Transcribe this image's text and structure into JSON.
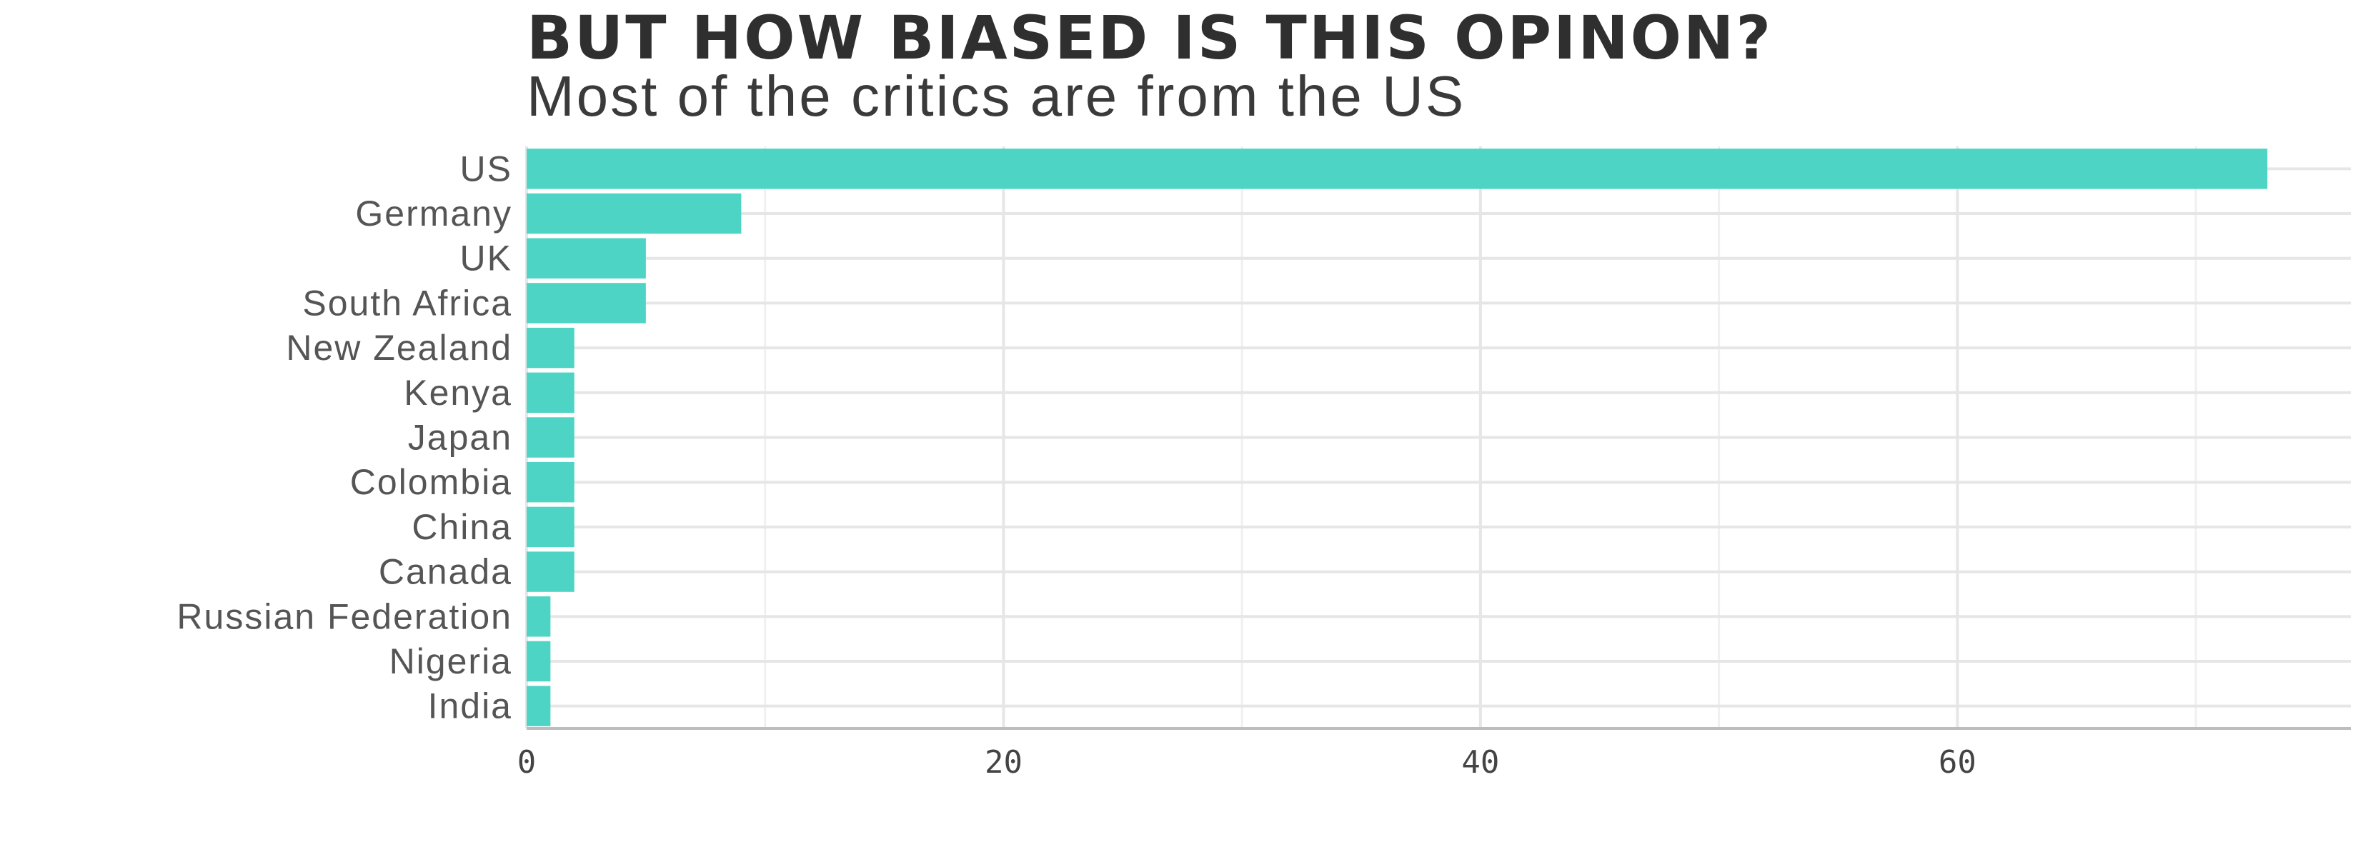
{
  "chart_data": {
    "type": "bar",
    "orientation": "horizontal",
    "title": "BUT HOW BIASED IS THIS OPINON?",
    "subtitle": "Most of the critics are from the US",
    "xlabel": "",
    "ylabel": "",
    "categories": [
      "US",
      "Germany",
      "UK",
      "South Africa",
      "New Zealand",
      "Kenya",
      "Japan",
      "Colombia",
      "China",
      "Canada",
      "Russian Federation",
      "Nigeria",
      "India"
    ],
    "values": [
      73,
      9,
      5,
      5,
      2,
      2,
      2,
      2,
      2,
      2,
      1,
      1,
      1
    ],
    "xlim": [
      0,
      76.5
    ],
    "xticks": [
      0,
      20,
      40,
      60
    ],
    "grid": true,
    "legend": "none",
    "bar_color": "#4dd4c4"
  }
}
